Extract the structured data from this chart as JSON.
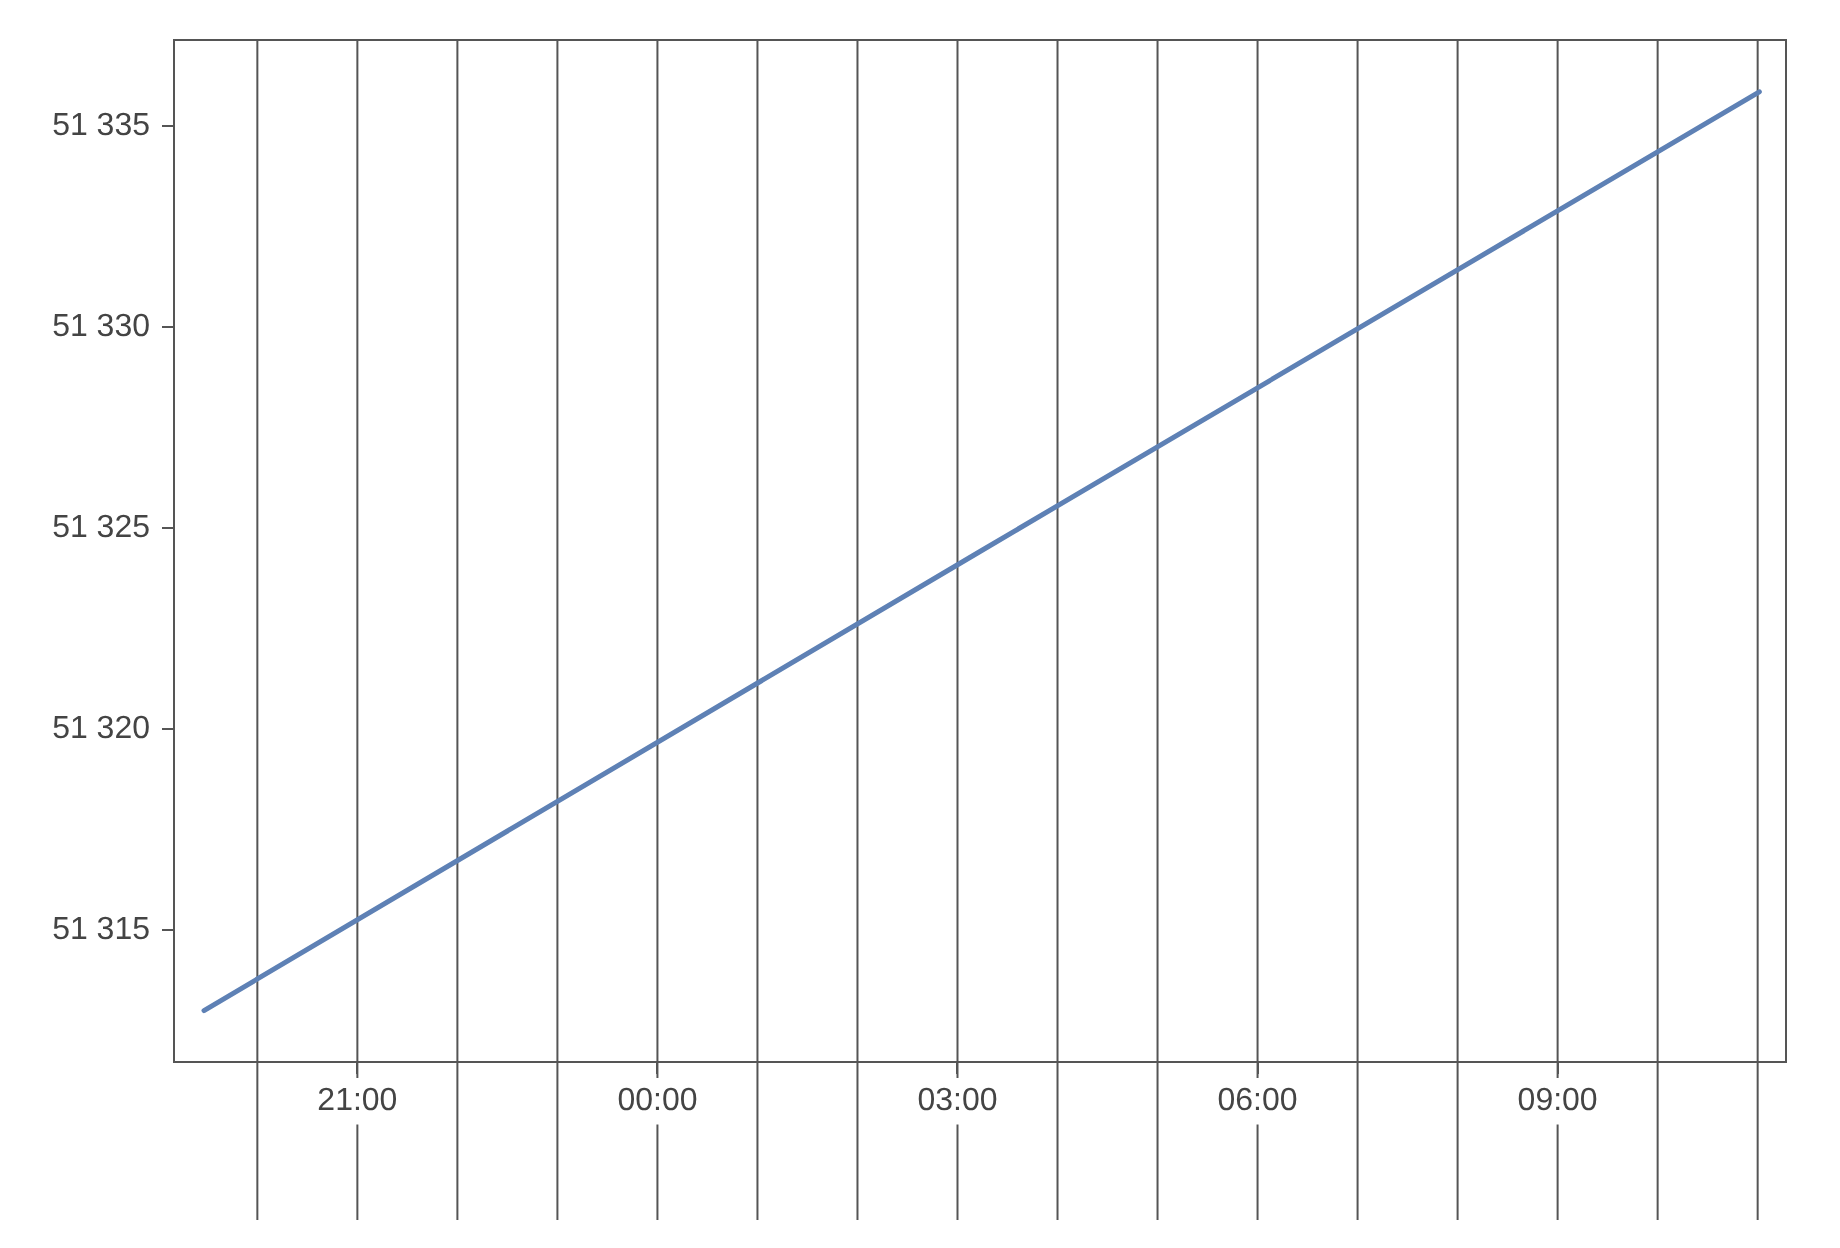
{
  "chart_data": {
    "type": "line",
    "x": [
      "2000-01-01T19:28",
      "2000-01-02T03:14",
      "2000-01-02T11:01"
    ],
    "values": [
      51313.0,
      51324.43,
      51335.85
    ],
    "color": "#5e81b5",
    "xlim": [
      "2000-01-01T19:10",
      "2000-01-02T11:17"
    ],
    "ylim": [
      51311.72,
      51337.14
    ],
    "xticks": [
      {
        "value": "2000-01-01T21:00",
        "label": "21:00"
      },
      {
        "value": "2000-01-02T00:00",
        "label": "00:00"
      },
      {
        "value": "2000-01-02T03:00",
        "label": "03:00"
      },
      {
        "value": "2000-01-02T06:00",
        "label": "06:00"
      },
      {
        "value": "2000-01-02T09:00",
        "label": "09:00"
      }
    ],
    "yticks": [
      {
        "value": 51315,
        "label": "51 315"
      },
      {
        "value": 51320,
        "label": "51 320"
      },
      {
        "value": 51325,
        "label": "51 325"
      },
      {
        "value": 51330,
        "label": "51 330"
      },
      {
        "value": 51335,
        "label": "51 335"
      }
    ],
    "ref_lines": [
      {
        "axis": "x",
        "value": "2000-01-01T20:00"
      },
      {
        "axis": "x",
        "value": "2000-01-01T21:00"
      },
      {
        "axis": "x",
        "value": "2000-01-01T22:00"
      },
      {
        "axis": "x",
        "value": "2000-01-01T23:00"
      },
      {
        "axis": "x",
        "value": "2000-01-02T00:00"
      },
      {
        "axis": "x",
        "value": "2000-01-02T01:00"
      },
      {
        "axis": "x",
        "value": "2000-01-02T02:00"
      },
      {
        "axis": "x",
        "value": "2000-01-02T03:00"
      },
      {
        "axis": "x",
        "value": "2000-01-02T04:00"
      },
      {
        "axis": "x",
        "value": "2000-01-02T05:00"
      },
      {
        "axis": "x",
        "value": "2000-01-02T06:00"
      },
      {
        "axis": "x",
        "value": "2000-01-02T07:00"
      },
      {
        "axis": "x",
        "value": "2000-01-02T08:00"
      },
      {
        "axis": "x",
        "value": "2000-01-02T09:00"
      },
      {
        "axis": "x",
        "value": "2000-01-02T10:00"
      },
      {
        "axis": "x",
        "value": "2000-01-02T11:00"
      }
    ],
    "grid": false,
    "legend": false,
    "marker": "none",
    "line_style": "solid"
  }
}
